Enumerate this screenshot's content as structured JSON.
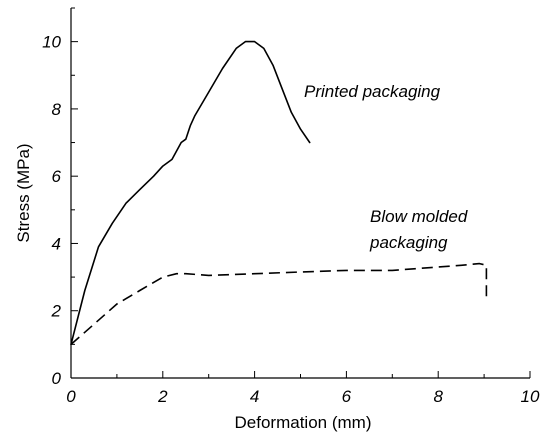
{
  "chart_data": {
    "type": "line",
    "xlabel": "Deformation (mm)",
    "ylabel": "Stress (MPa)",
    "xlim": [
      0,
      10
    ],
    "ylim": [
      0,
      11
    ],
    "xticks": [
      0,
      2,
      4,
      6,
      8,
      10
    ],
    "yticks": [
      0,
      2,
      4,
      6,
      8,
      10
    ],
    "x_tick_labels": [
      "0",
      "2",
      "4",
      "6",
      "8",
      "10"
    ],
    "y_tick_labels": [
      "0",
      "2",
      "4",
      "6",
      "8",
      "10"
    ],
    "grid": false,
    "legend": "none",
    "series": [
      {
        "name": "Printed packaging",
        "style": "solid",
        "color": "#000000",
        "x": [
          0,
          0.3,
          0.6,
          0.9,
          1.2,
          1.5,
          1.8,
          2.0,
          2.2,
          2.4,
          2.5,
          2.6,
          2.7,
          3.0,
          3.3,
          3.6,
          3.8,
          4.0,
          4.2,
          4.4,
          4.6,
          4.8,
          5.0,
          5.2
        ],
        "y": [
          1.0,
          2.6,
          3.9,
          4.6,
          5.2,
          5.6,
          6.0,
          6.3,
          6.5,
          7.0,
          7.1,
          7.5,
          7.8,
          8.5,
          9.2,
          9.8,
          10.0,
          10.0,
          9.8,
          9.3,
          8.6,
          7.9,
          7.4,
          7.0
        ]
      },
      {
        "name": "Blow molded packaging",
        "style": "dashed",
        "color": "#000000",
        "x": [
          0,
          0.5,
          1.0,
          1.5,
          2.0,
          2.3,
          2.5,
          3.0,
          4.0,
          5.0,
          6.0,
          7.0,
          8.0,
          8.5,
          8.9,
          9.05,
          9.05
        ],
        "y": [
          1.0,
          1.6,
          2.2,
          2.6,
          3.0,
          3.1,
          3.1,
          3.05,
          3.1,
          3.15,
          3.2,
          3.2,
          3.3,
          3.35,
          3.4,
          3.35,
          2.35
        ]
      }
    ],
    "annotations": [
      {
        "line1": "Printed packaging",
        "line2": ""
      },
      {
        "line1": "Blow molded",
        "line2": "packaging"
      }
    ]
  }
}
